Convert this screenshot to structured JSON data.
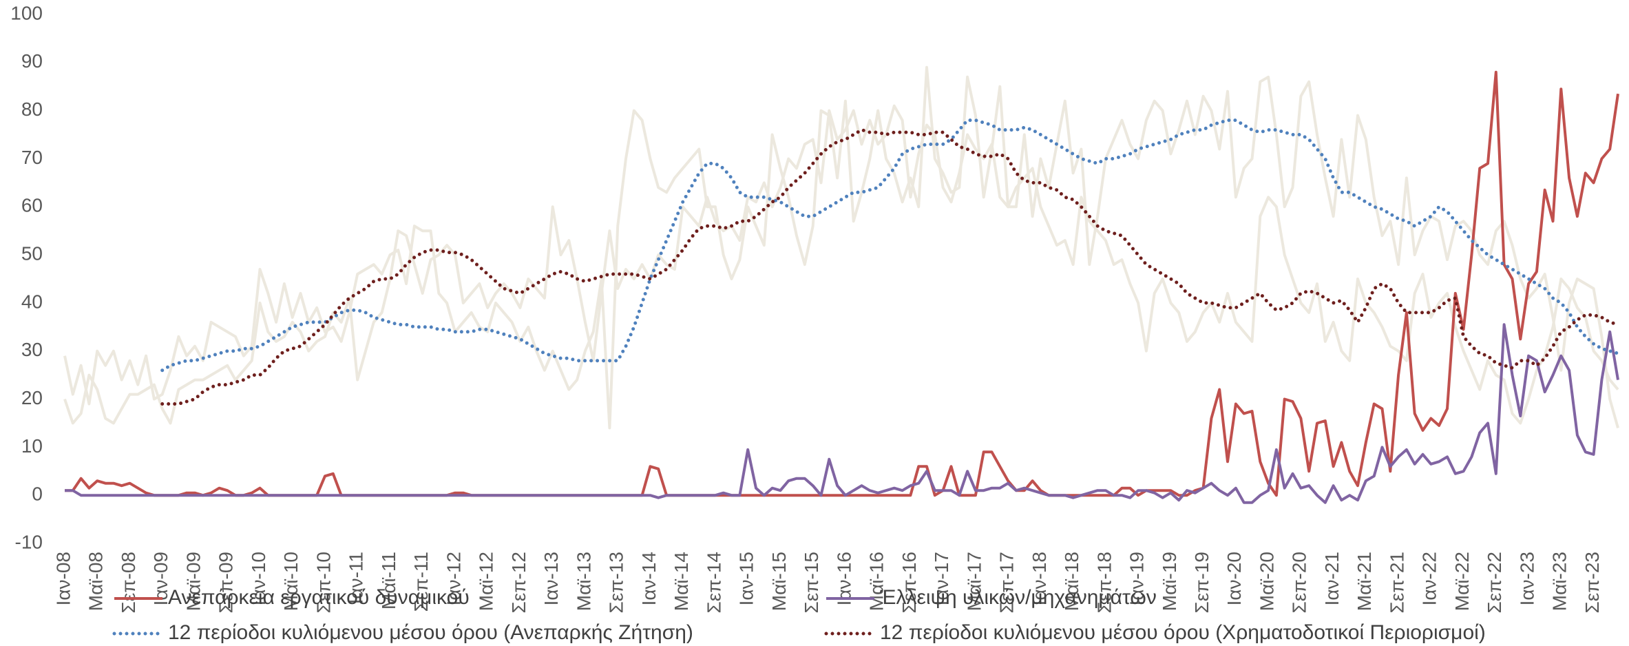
{
  "chart_data": {
    "type": "line",
    "categories": [
      "Ιαν-08",
      null,
      null,
      null,
      "Μαϊ-08",
      null,
      null,
      null,
      "Σεπ-08",
      null,
      null,
      null,
      "Ιαν-09",
      null,
      null,
      null,
      "Μαϊ-09",
      null,
      null,
      null,
      "Σεπ-09",
      null,
      null,
      null,
      "Ιαν-10",
      null,
      null,
      null,
      "Μαϊ-10",
      null,
      null,
      null,
      "Σεπ-10",
      null,
      null,
      null,
      "Ιαν-11",
      null,
      null,
      null,
      "Μαϊ-11",
      null,
      null,
      null,
      "Σεπ-11",
      null,
      null,
      null,
      "Ιαν-12",
      null,
      null,
      null,
      "Μαϊ-12",
      null,
      null,
      null,
      "Σεπ-12",
      null,
      null,
      null,
      "Ιαν-13",
      null,
      null,
      null,
      "Μαϊ-13",
      null,
      null,
      null,
      "Σεπ-13",
      null,
      null,
      null,
      "Ιαν-14",
      null,
      null,
      null,
      "Μαϊ-14",
      null,
      null,
      null,
      "Σεπ-14",
      null,
      null,
      null,
      "Ιαν-15",
      null,
      null,
      null,
      "Μαϊ-15",
      null,
      null,
      null,
      "Σεπ-15",
      null,
      null,
      null,
      "Ιαν-16",
      null,
      null,
      null,
      "Μαϊ-16",
      null,
      null,
      null,
      "Σεπ-16",
      null,
      null,
      null,
      "Ιαν-17",
      null,
      null,
      null,
      "Μαϊ-17",
      null,
      null,
      null,
      "Σεπ-17",
      null,
      null,
      null,
      "Ιαν-18",
      null,
      null,
      null,
      "Μαϊ-18",
      null,
      null,
      null,
      "Σεπ-18",
      null,
      null,
      null,
      "Ιαν-19",
      null,
      null,
      null,
      "Μαϊ-19",
      null,
      null,
      null,
      "Σεπ-19",
      null,
      null,
      null,
      "Ιαν-20",
      null,
      null,
      null,
      "Μαϊ-20",
      null,
      null,
      null,
      "Σεπ-20",
      null,
      null,
      null,
      "Ιαν-21",
      null,
      null,
      null,
      "Μαϊ-21",
      null,
      null,
      null,
      "Σεπ-21",
      null,
      null,
      null,
      "Ιαν-22",
      null,
      null,
      null,
      "Μαϊ-22",
      null,
      null,
      null,
      "Σεπ-22",
      null,
      null,
      null,
      "Ιαν-23",
      null,
      null,
      null,
      "Μαϊ-23",
      null,
      null,
      null,
      "Σεπ-23",
      null,
      null,
      null
    ],
    "series": [
      {
        "color": "#ece8de",
        "style": "solid",
        "values": [
          29,
          21,
          27,
          19,
          30,
          27,
          30,
          24,
          28,
          23,
          29,
          20,
          21,
          26,
          33,
          29,
          31,
          28,
          36,
          35,
          34,
          33,
          29,
          31,
          47,
          42,
          36,
          44,
          37,
          42,
          36,
          39,
          34,
          35,
          32,
          38,
          46,
          47,
          48,
          46,
          50,
          51,
          44,
          56,
          55,
          55,
          42,
          40,
          34,
          36,
          38,
          35,
          34,
          40,
          38,
          36,
          32,
          35,
          30,
          26,
          30,
          26,
          22,
          24,
          30,
          34,
          45,
          14,
          56,
          70,
          80,
          78,
          70,
          64,
          63,
          66,
          68,
          70,
          72,
          60,
          60,
          50,
          45,
          49,
          60,
          56,
          52,
          75,
          68,
          62,
          54,
          48,
          56,
          80,
          79,
          66,
          82,
          57,
          63,
          70,
          80,
          70,
          67,
          61,
          66,
          60,
          89,
          70,
          67,
          63,
          64,
          87,
          79,
          62,
          72,
          85,
          60,
          60,
          75,
          58,
          70,
          64,
          73,
          82,
          67,
          72,
          48,
          58,
          70,
          74,
          78,
          73,
          70,
          78,
          82,
          80,
          71,
          76,
          82,
          75,
          83,
          80,
          72,
          84,
          62,
          68,
          70,
          86,
          87,
          75,
          60,
          64,
          83,
          86,
          75,
          66,
          58,
          74,
          62,
          79,
          74,
          62,
          54,
          57,
          48,
          66,
          50,
          55,
          58,
          57,
          49,
          56,
          57,
          55,
          50,
          48,
          55,
          57,
          52,
          45,
          41,
          43,
          46,
          37,
          26,
          40,
          45,
          44,
          43,
          33,
          20,
          14
        ]
      },
      {
        "color": "#ece8de",
        "style": "solid",
        "values": [
          20,
          15,
          17,
          25,
          22,
          16,
          15,
          18,
          21,
          21,
          22,
          23,
          18,
          15,
          22,
          23,
          24,
          24,
          25,
          26,
          27,
          24,
          26,
          28,
          40,
          34,
          32,
          33,
          36,
          34,
          30,
          32,
          33,
          38,
          36,
          41,
          24,
          30,
          36,
          38,
          45,
          55,
          54,
          48,
          42,
          49,
          50,
          52,
          50,
          40,
          42,
          44,
          39,
          42,
          44,
          42,
          39,
          45,
          43,
          41,
          60,
          50,
          53,
          45,
          36,
          28,
          42,
          55,
          43,
          47,
          45,
          48,
          45,
          50,
          48,
          47,
          60,
          58,
          56,
          62,
          57,
          55,
          56,
          53,
          62,
          61,
          65,
          60,
          64,
          70,
          68,
          73,
          74,
          65,
          80,
          74,
          76,
          80,
          73,
          78,
          73,
          75,
          81,
          78,
          62,
          71,
          77,
          75,
          64,
          61,
          67,
          75,
          72,
          70,
          73,
          62,
          60,
          64,
          66,
          68,
          60,
          56,
          52,
          53,
          48,
          62,
          57,
          55,
          53,
          48,
          49,
          44,
          40,
          30,
          42,
          45,
          40,
          38,
          32,
          34,
          38,
          40,
          36,
          42,
          36,
          34,
          32,
          58,
          62,
          60,
          50,
          45,
          40,
          38,
          44,
          32,
          36,
          30,
          28,
          45,
          40,
          38,
          35,
          31,
          30,
          28,
          42,
          46,
          37,
          40,
          42,
          35,
          30,
          26,
          22,
          28,
          25,
          24,
          17,
          15,
          20,
          26,
          29,
          35,
          45,
          43,
          39,
          37,
          30,
          28,
          24,
          22
        ]
      },
      {
        "name": "Ανεπάρκεια εργατικού δυναμικού",
        "color": "#c0504d",
        "style": "solid",
        "values": [
          1,
          1,
          3.5,
          1.5,
          3,
          2.5,
          2.5,
          2,
          2.5,
          1.5,
          0.5,
          0,
          0,
          0,
          0,
          0.5,
          0.5,
          0,
          0.5,
          1.5,
          1,
          0,
          0,
          0.5,
          1.5,
          0,
          0,
          0,
          0,
          0,
          0,
          0,
          4,
          4.5,
          0,
          0,
          0,
          0,
          0,
          0,
          0,
          0,
          0,
          0,
          0,
          0,
          0,
          0,
          0.5,
          0.5,
          0,
          0,
          0,
          0,
          0,
          0,
          0,
          0,
          0,
          0,
          0,
          0,
          0,
          0,
          0,
          0,
          0,
          0,
          0,
          0,
          0,
          0,
          6,
          5.5,
          0,
          0,
          0,
          0,
          0,
          0,
          0,
          0,
          0,
          0,
          0,
          0,
          0,
          0,
          0,
          0,
          0,
          0,
          0,
          0,
          0,
          0,
          0,
          0,
          0,
          0,
          0,
          0,
          0,
          0,
          0,
          6,
          6,
          0,
          1,
          6,
          0,
          0,
          0,
          9,
          9,
          6,
          3,
          1,
          1,
          3,
          1,
          0,
          0,
          0,
          0,
          0,
          0,
          0,
          0,
          0,
          1.5,
          1.5,
          0,
          1,
          1,
          1,
          1,
          0,
          0,
          1,
          1.5,
          16,
          22,
          7,
          19,
          17,
          17.5,
          7,
          2.5,
          0,
          20,
          19.5,
          16,
          5,
          15,
          15.5,
          6,
          11,
          5,
          2,
          11,
          19,
          18,
          5,
          25,
          38,
          17,
          13.5,
          16,
          14.5,
          18,
          42,
          34.5,
          50,
          68,
          69,
          88,
          48,
          45,
          32.5,
          44,
          46.5,
          63.5,
          57,
          84.5,
          66,
          58,
          67,
          65,
          70,
          72,
          83.5
        ]
      },
      {
        "name": "Έλλειψη υλικών/μηχανημάτων",
        "color": "#8064a2",
        "style": "solid",
        "values": [
          1,
          1,
          0,
          0,
          0,
          0,
          0,
          0,
          0,
          0,
          0,
          0,
          0,
          0,
          0,
          0,
          0,
          0,
          0,
          0,
          0,
          0,
          0,
          0,
          0,
          0,
          0,
          0,
          0,
          0,
          0,
          0,
          0,
          0,
          0,
          0,
          0,
          0,
          0,
          0,
          0,
          0,
          0,
          0,
          0,
          0,
          0,
          0,
          0,
          0,
          0,
          0,
          0,
          0,
          0,
          0,
          0,
          0,
          0,
          0,
          0,
          0,
          0,
          0,
          0,
          0,
          0,
          0,
          0,
          0,
          0,
          0,
          0,
          -0.5,
          0,
          0,
          0,
          0,
          0,
          0,
          0,
          0.5,
          0,
          0,
          9.5,
          1.5,
          0,
          1.5,
          1,
          3,
          3.5,
          3.5,
          2,
          0,
          7.5,
          2,
          0,
          1,
          2,
          1,
          0.5,
          1,
          1.5,
          1,
          2,
          2.5,
          5,
          1,
          1,
          1,
          0,
          5,
          1,
          1,
          1.5,
          1.5,
          2.5,
          1,
          1.5,
          1,
          0.5,
          0,
          0,
          0,
          -0.5,
          0,
          0.5,
          1,
          1,
          0,
          0,
          -0.5,
          1,
          1,
          0.5,
          -0.5,
          0.5,
          -1,
          1,
          0.5,
          1.5,
          2.5,
          1,
          0,
          1.5,
          -1.5,
          -1.5,
          0,
          1,
          9.5,
          1.5,
          4.5,
          1.5,
          2,
          0,
          -1.5,
          2,
          -1,
          0,
          -1,
          3,
          4,
          10,
          6,
          8,
          9.5,
          6.5,
          8.5,
          6.5,
          7,
          8,
          4.5,
          5,
          8,
          13,
          15,
          4.5,
          35.5,
          25,
          16.5,
          29,
          28,
          21.5,
          25,
          29,
          26,
          12.5,
          9,
          8.5,
          24,
          34,
          24
        ]
      },
      {
        "name": "12 περίοδοι κυλιόμενου μέσου όρου (Ανεπαρκής Ζήτηση)",
        "color": "#4f81bd",
        "style": "dotted",
        "values": [
          null,
          null,
          null,
          null,
          null,
          null,
          null,
          null,
          null,
          null,
          null,
          null,
          26,
          27,
          27.5,
          28,
          28,
          28.5,
          29,
          29.5,
          30,
          30,
          30.5,
          30.5,
          31,
          32,
          33,
          34,
          35,
          35.5,
          36,
          36,
          36,
          37,
          38,
          38.5,
          38.5,
          38,
          37,
          36.5,
          36,
          35.5,
          35.5,
          35,
          35,
          35,
          34.5,
          34.5,
          34,
          34,
          34,
          34.5,
          34.5,
          34,
          33.5,
          33,
          32.5,
          31.5,
          30.5,
          29.5,
          29,
          28.5,
          28.5,
          28,
          28,
          28,
          28,
          28,
          28,
          31,
          35,
          40,
          45,
          49,
          53,
          57,
          61,
          64,
          67,
          69,
          69,
          68,
          66,
          63,
          62,
          62,
          62,
          61.5,
          61,
          60,
          59,
          58,
          58,
          59,
          60,
          61,
          62,
          63,
          63,
          63.5,
          64,
          66,
          68,
          71,
          72,
          72.5,
          73,
          73,
          73,
          74,
          76,
          78,
          78,
          77.5,
          77,
          76,
          76,
          76,
          76.5,
          76,
          75,
          74,
          73,
          72,
          71,
          70,
          69.5,
          69,
          70,
          70,
          70.5,
          71,
          72,
          72.5,
          73,
          73.5,
          74,
          75,
          75.5,
          76,
          76,
          77,
          77.5,
          78,
          78,
          77,
          76,
          75.5,
          76,
          76,
          75.5,
          75,
          75,
          74,
          72,
          70,
          66,
          63,
          63,
          62,
          61,
          60,
          59.5,
          58.5,
          57.5,
          57,
          56,
          57,
          58,
          60,
          59,
          57,
          55,
          53,
          51.5,
          50,
          49,
          48,
          47,
          46,
          45,
          44,
          43,
          41,
          40,
          38,
          35,
          33,
          31.5,
          30.5,
          30,
          29.5
        ]
      },
      {
        "name": "12 περίοδοι κυλιόμενου μέσου όρου (Χρηματοδοτικοί Περιορισμοί)",
        "color": "#6e1f1d",
        "style": "dotted",
        "values": [
          null,
          null,
          null,
          null,
          null,
          null,
          null,
          null,
          null,
          null,
          null,
          null,
          19,
          19,
          19,
          19.5,
          20,
          21.5,
          22.5,
          23,
          23,
          23.5,
          24,
          25,
          25,
          26.5,
          28.5,
          30,
          30.5,
          31,
          32.5,
          34,
          35.5,
          37.5,
          39.5,
          41,
          42,
          43,
          44.5,
          45,
          45,
          46,
          48,
          49.5,
          50.5,
          51,
          51,
          50.5,
          50.5,
          50,
          49,
          47.5,
          46,
          44.5,
          43,
          42.5,
          42,
          43,
          44,
          45,
          46,
          46.5,
          46,
          45,
          44.5,
          45,
          45.5,
          46,
          46,
          46,
          46,
          45.5,
          45,
          46,
          47,
          49,
          51,
          53.5,
          55.5,
          56,
          56,
          55.5,
          56,
          57,
          57,
          58,
          59.5,
          61,
          62,
          64,
          65.5,
          67,
          69,
          71,
          72.5,
          73.5,
          74,
          75,
          76,
          75.5,
          75.5,
          75,
          75.5,
          75.5,
          75.5,
          75,
          75,
          75.5,
          75.5,
          74,
          72.5,
          72,
          71,
          70.5,
          70.5,
          71,
          70,
          67,
          65.5,
          65,
          65,
          64,
          63.5,
          62,
          61.5,
          60,
          58,
          56,
          55,
          54.5,
          54,
          52,
          50,
          48,
          47,
          46,
          45,
          44,
          42,
          41,
          40,
          40,
          39.5,
          39,
          39,
          40,
          41,
          42,
          40,
          38.5,
          39,
          40,
          42,
          42.5,
          42,
          41,
          40,
          40.5,
          38.5,
          36,
          39,
          43,
          44,
          43,
          40,
          38,
          38,
          38,
          38,
          39,
          40.5,
          41,
          33,
          31,
          29.5,
          29,
          27.5,
          27,
          26.5,
          28,
          28,
          27,
          28.5,
          31,
          34,
          35,
          36.5,
          37.5,
          37.5,
          37,
          36,
          35.5
        ]
      }
    ],
    "ylim": [
      -10,
      100
    ],
    "yticks": [
      -10,
      0,
      10,
      20,
      30,
      40,
      50,
      60,
      70,
      80,
      90,
      100
    ],
    "grid": false,
    "legend": "bottom"
  }
}
